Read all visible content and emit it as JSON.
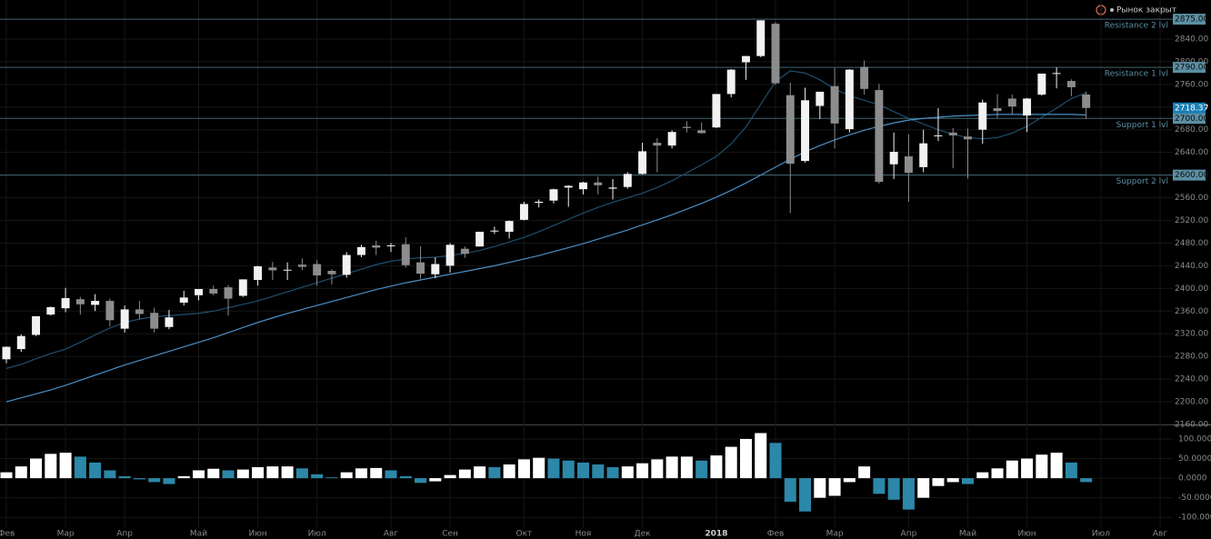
{
  "chart_data": {
    "type": "candlestick",
    "status": "Рынок закрыт",
    "categories": [
      "Фев",
      null,
      null,
      null,
      "Мар",
      null,
      null,
      null,
      "Апр",
      null,
      null,
      null,
      null,
      "Май",
      null,
      null,
      null,
      "Июн",
      null,
      null,
      null,
      "Июл",
      null,
      null,
      null,
      null,
      "Авг",
      null,
      null,
      null,
      "Сен",
      null,
      null,
      null,
      null,
      "Окт",
      null,
      null,
      null,
      "Ноя",
      null,
      null,
      null,
      "Дек",
      null,
      null,
      null,
      null,
      "2018",
      null,
      null,
      null,
      "Фев",
      null,
      null,
      null,
      "Мар",
      null,
      null,
      null,
      null,
      "Апр",
      null,
      null,
      null,
      "Май",
      null,
      null,
      null,
      "Июн",
      null,
      null,
      null,
      null,
      "Июл",
      null,
      null,
      null,
      "Авг"
    ],
    "open": [
      2275,
      2293,
      2318,
      2354,
      2365,
      2381,
      2371,
      2378,
      2329,
      2363,
      2357,
      2332,
      2375,
      2388,
      2399,
      2402,
      2387,
      2415,
      2437,
      2432,
      2442,
      2443,
      2431,
      2424,
      2459,
      2476,
      2475,
      2478,
      2446,
      2425,
      2440,
      2470,
      2474,
      2501,
      2500,
      2521,
      2551,
      2555,
      2578,
      2575,
      2587,
      2576,
      2579,
      2602,
      2657,
      2652,
      2685,
      2679,
      2684,
      2743,
      2799,
      2810,
      2867,
      2741,
      2625,
      2722,
      2757,
      2681,
      2791,
      2750,
      2619,
      2633,
      2614,
      2670,
      2675,
      2668,
      2680,
      2718,
      2735,
      2705,
      2742,
      2780,
      2766,
      2742,
      null,
      null,
      null,
      null,
      null
    ],
    "high": [
      2298,
      2319,
      2351,
      2368,
      2401,
      2385,
      2390,
      2382,
      2370,
      2378,
      2366,
      2362,
      2396,
      2399,
      2405,
      2406,
      2416,
      2440,
      2447,
      2446,
      2453,
      2450,
      2434,
      2464,
      2477,
      2484,
      2480,
      2490,
      2474,
      2455,
      2480,
      2474,
      2500,
      2509,
      2520,
      2553,
      2557,
      2576,
      2582,
      2588,
      2597,
      2593,
      2605,
      2657,
      2665,
      2679,
      2695,
      2693,
      2743,
      2787,
      2810,
      2873,
      2870,
      2763,
      2754,
      2747,
      2789,
      2787,
      2802,
      2761,
      2675,
      2672,
      2680,
      2718,
      2683,
      2682,
      2733,
      2743,
      2742,
      2736,
      2779,
      2790,
      2769,
      2747,
      null,
      null,
      null,
      null,
      null
    ],
    "low": [
      2268,
      2288,
      2316,
      2352,
      2358,
      2354,
      2360,
      2333,
      2322,
      2345,
      2322,
      2328,
      2370,
      2379,
      2388,
      2352,
      2385,
      2405,
      2415,
      2415,
      2432,
      2405,
      2407,
      2419,
      2455,
      2459,
      2464,
      2437,
      2417,
      2418,
      2428,
      2454,
      2474,
      2496,
      2488,
      2520,
      2543,
      2550,
      2544,
      2566,
      2566,
      2557,
      2576,
      2601,
      2605,
      2647,
      2675,
      2673,
      2683,
      2737,
      2768,
      2808,
      2759,
      2533,
      2622,
      2699,
      2647,
      2675,
      2742,
      2585,
      2593,
      2553,
      2605,
      2660,
      2612,
      2594,
      2655,
      2701,
      2707,
      2676,
      2740,
      2753,
      2739,
      2699,
      null,
      null,
      null,
      null,
      null
    ],
    "close": [
      2297,
      2316,
      2351,
      2367,
      2383,
      2372,
      2378,
      2344,
      2363,
      2355,
      2329,
      2349,
      2384,
      2399,
      2391,
      2382,
      2416,
      2439,
      2432,
      2433,
      2438,
      2423,
      2425,
      2459,
      2473,
      2472,
      2476,
      2441,
      2426,
      2443,
      2477,
      2461,
      2500,
      2502,
      2519,
      2549,
      2553,
      2575,
      2581,
      2587,
      2582,
      2578,
      2602,
      2642,
      2652,
      2676,
      2683,
      2674,
      2743,
      2786,
      2810,
      2873,
      2762,
      2620,
      2732,
      2747,
      2691,
      2786,
      2752,
      2588,
      2641,
      2604,
      2656,
      2670,
      2670,
      2663,
      2728,
      2713,
      2721,
      2735,
      2779,
      2780,
      2755,
      2718.37,
      null,
      null,
      null,
      null,
      null
    ],
    "up_color": "#f2f2f2",
    "down_color": "#8c8c8c",
    "series": [
      {
        "color": "#1f4f6e",
        "values": [
          2259,
          2266,
          2276,
          2285,
          2293,
          2305,
          2318,
          2330,
          2340,
          2346,
          2350,
          2352,
          2354,
          2356,
          2360,
          2366,
          2372,
          2378,
          2386,
          2394,
          2402,
          2410,
          2418,
          2426,
          2434,
          2442,
          2448,
          2452,
          2454,
          2455,
          2458,
          2462,
          2467,
          2474,
          2482,
          2490,
          2500,
          2511,
          2522,
          2533,
          2543,
          2552,
          2560,
          2568,
          2578,
          2590,
          2604,
          2618,
          2633,
          2655,
          2685,
          2725,
          2765,
          2784,
          2780,
          2768,
          2752,
          2740,
          2732,
          2724,
          2712,
          2700,
          2690,
          2680,
          2672,
          2666,
          2664,
          2666,
          2674,
          2686,
          2702,
          2718,
          2735,
          2745,
          null,
          null,
          null,
          null,
          null
        ]
      },
      {
        "color": "#4a8fc6",
        "values": [
          2200,
          2207,
          2214,
          2221,
          2229,
          2238,
          2247,
          2256,
          2265,
          2273,
          2281,
          2289,
          2297,
          2305,
          2313,
          2322,
          2331,
          2340,
          2348,
          2356,
          2363,
          2370,
          2377,
          2384,
          2391,
          2398,
          2404,
          2410,
          2415,
          2420,
          2425,
          2430,
          2435,
          2440,
          2446,
          2452,
          2458,
          2465,
          2472,
          2479,
          2487,
          2495,
          2503,
          2512,
          2521,
          2530,
          2540,
          2550,
          2561,
          2573,
          2586,
          2600,
          2614,
          2628,
          2641,
          2652,
          2662,
          2671,
          2679,
          2686,
          2692,
          2697,
          2700,
          2702,
          2704,
          2705,
          2706,
          2707,
          2707,
          2707,
          2707,
          2707,
          2707,
          2706,
          null,
          null,
          null,
          null,
          null
        ]
      }
    ],
    "ylim": [
      2160,
      2880
    ],
    "yticks": [
      {
        "value": 2160,
        "label": "2160.00"
      },
      {
        "value": 2200,
        "label": "2200.00"
      },
      {
        "value": 2240,
        "label": "2240.00"
      },
      {
        "value": 2280,
        "label": "2280.00"
      },
      {
        "value": 2320,
        "label": "2320.00"
      },
      {
        "value": 2360,
        "label": "2360.00"
      },
      {
        "value": 2400,
        "label": "2400.00"
      },
      {
        "value": 2440,
        "label": "2440.00"
      },
      {
        "value": 2480,
        "label": "2480.00"
      },
      {
        "value": 2520,
        "label": "2520.00"
      },
      {
        "value": 2560,
        "label": "2560.00"
      },
      {
        "value": 2600,
        "label": "2600.00"
      },
      {
        "value": 2640,
        "label": "2640.00"
      },
      {
        "value": 2680,
        "label": "2680.00"
      },
      {
        "value": 2720,
        "label": "2720.00"
      },
      {
        "value": 2760,
        "label": "2760.00"
      },
      {
        "value": 2800,
        "label": "2800.00"
      },
      {
        "value": 2840,
        "label": "2840.00"
      }
    ],
    "grid": true,
    "levels": [
      {
        "name": "Resistance 2 lvl",
        "value": 2875,
        "label": "2875.00"
      },
      {
        "name": "Resistance 1 lvl",
        "value": 2790,
        "label": "2790.00"
      },
      {
        "name": "Support 1 lvl",
        "value": 2700,
        "label": "2700.00"
      },
      {
        "name": "Support 2 lvl",
        "value": 2600,
        "label": "2600.00"
      }
    ],
    "level_color": "#5b8ea2",
    "last_price": {
      "value": 2718.37,
      "label": "2718.37",
      "color": "#1b7fb5"
    },
    "oscillator": {
      "type": "bar",
      "values": [
        15,
        30,
        50,
        62,
        65,
        55,
        40,
        20,
        5,
        -3,
        -10,
        -15,
        5,
        20,
        24,
        20,
        22,
        28,
        30,
        30,
        25,
        10,
        2,
        15,
        25,
        26,
        20,
        5,
        -12,
        -8,
        8,
        22,
        30,
        28,
        35,
        48,
        52,
        50,
        45,
        40,
        35,
        28,
        30,
        38,
        48,
        55,
        55,
        45,
        58,
        80,
        100,
        115,
        90,
        -60,
        -85,
        -50,
        -45,
        -10,
        30,
        -40,
        -55,
        -80,
        -50,
        -20,
        -10,
        -15,
        15,
        25,
        45,
        50,
        60,
        65,
        40,
        -10,
        null,
        null,
        null,
        null,
        null
      ],
      "up_color": "#ffffff",
      "down_color": "#2c87a8",
      "ylim": [
        -125,
        130
      ],
      "yticks": [
        {
          "value": 100,
          "label": "100.0000"
        },
        {
          "value": 50,
          "label": "50.0000"
        },
        {
          "value": 0,
          "label": "0.0000"
        },
        {
          "value": -50,
          "label": "-50.0000"
        },
        {
          "value": -100,
          "label": "-100.0000"
        }
      ]
    }
  }
}
